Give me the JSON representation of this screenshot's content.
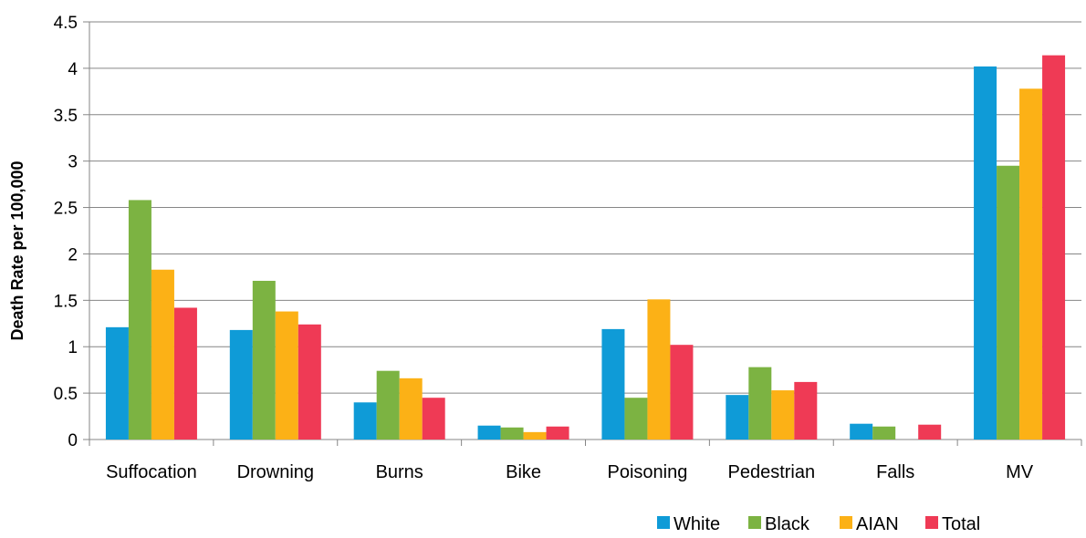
{
  "chart_data": {
    "type": "bar",
    "title": "",
    "xlabel": "",
    "ylabel": "Death Rate per 100,000",
    "ylim": [
      0,
      4.5
    ],
    "yticks": [
      "0",
      "0.5",
      "1",
      "1.5",
      "2",
      "2.5",
      "3",
      "3.5",
      "4",
      "4.5"
    ],
    "grid": true,
    "legend_position": "bottom-right",
    "categories": [
      "Suffocation",
      "Drowning",
      "Burns",
      "Bike",
      "Poisoning",
      "Pedestrian",
      "Falls",
      "MV"
    ],
    "series": [
      {
        "name": "White",
        "color": "#0f9bd7",
        "values": [
          1.21,
          1.18,
          0.4,
          0.15,
          1.19,
          0.48,
          0.17,
          4.02
        ]
      },
      {
        "name": "Black",
        "color": "#7cb342",
        "values": [
          2.58,
          1.71,
          0.74,
          0.13,
          0.45,
          0.78,
          0.14,
          2.95
        ]
      },
      {
        "name": "AIAN",
        "color": "#fcb116",
        "values": [
          1.83,
          1.38,
          0.66,
          0.08,
          1.51,
          0.53,
          null,
          3.78
        ]
      },
      {
        "name": "Total",
        "color": "#ef3a55",
        "values": [
          1.42,
          1.24,
          0.45,
          0.14,
          1.02,
          0.62,
          0.16,
          4.14
        ]
      }
    ]
  }
}
